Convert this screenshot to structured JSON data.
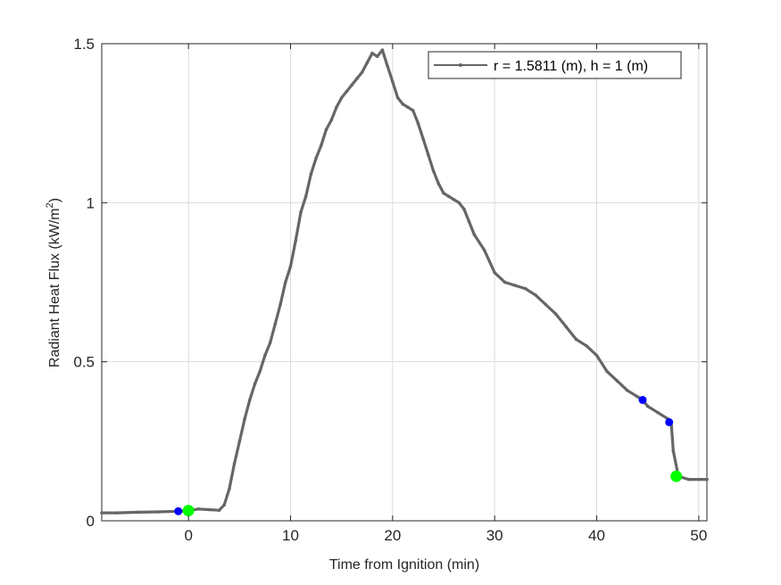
{
  "chart_data": {
    "type": "line",
    "xlabel": "Time from Ignition (min)",
    "ylabel_main": "Radiant Heat Flux (kW/m",
    "ylabel_sup": "2",
    "ylabel_end": ")",
    "xlim": [
      -8.5,
      50.8
    ],
    "ylim": [
      0,
      1.5
    ],
    "xticks": [
      0,
      10,
      20,
      30,
      40,
      50
    ],
    "xtick_labels": [
      "0",
      "10",
      "20",
      "30",
      "40",
      "50"
    ],
    "yticks": [
      0,
      0.5,
      1,
      1.5
    ],
    "ytick_labels": [
      "0",
      "0.5",
      "1",
      "1.5"
    ],
    "grid": true,
    "legend_position": "top-right",
    "series": [
      {
        "name": "r = 1.5811 (m), h = 1 (m)",
        "color": "#666666",
        "x": [
          -8.5,
          -7,
          -5,
          -3,
          -1,
          0,
          1,
          2,
          3,
          3.5,
          4,
          4.5,
          5,
          5.5,
          6,
          6.5,
          7,
          7.5,
          8,
          8.5,
          9,
          9.5,
          10,
          10.5,
          11,
          11.5,
          12,
          12.5,
          13,
          13.5,
          14,
          14.5,
          15,
          15.5,
          16,
          16.5,
          17,
          17.5,
          18,
          18.5,
          19,
          19.5,
          20,
          20.5,
          21,
          21.5,
          22,
          22.5,
          23,
          23.5,
          24,
          24.5,
          25,
          25.5,
          26,
          26.5,
          27,
          27.5,
          28,
          29,
          30,
          31,
          32,
          33,
          34,
          35,
          36,
          37,
          38,
          39,
          40,
          41,
          42,
          43,
          44,
          44.5,
          45,
          46,
          47,
          47.3,
          47.5,
          48,
          49,
          50,
          50.8
        ],
        "y": [
          0.025,
          0.025,
          0.027,
          0.028,
          0.03,
          0.032,
          0.037,
          0.035,
          0.033,
          0.05,
          0.1,
          0.18,
          0.25,
          0.32,
          0.38,
          0.43,
          0.47,
          0.52,
          0.56,
          0.62,
          0.68,
          0.75,
          0.8,
          0.88,
          0.97,
          1.02,
          1.09,
          1.14,
          1.18,
          1.23,
          1.26,
          1.3,
          1.33,
          1.35,
          1.37,
          1.39,
          1.41,
          1.44,
          1.47,
          1.46,
          1.48,
          1.43,
          1.38,
          1.33,
          1.31,
          1.3,
          1.29,
          1.25,
          1.2,
          1.15,
          1.1,
          1.06,
          1.03,
          1.02,
          1.01,
          1.0,
          0.98,
          0.94,
          0.9,
          0.85,
          0.78,
          0.75,
          0.74,
          0.73,
          0.71,
          0.68,
          0.65,
          0.61,
          0.57,
          0.55,
          0.52,
          0.47,
          0.44,
          0.41,
          0.39,
          0.38,
          0.36,
          0.34,
          0.32,
          0.31,
          0.22,
          0.14,
          0.13,
          0.13,
          0.13
        ]
      }
    ],
    "markers": [
      {
        "x": -1,
        "y": 0.03,
        "color": "#0000ff",
        "size": "small"
      },
      {
        "x": 0,
        "y": 0.032,
        "color": "#00ff00",
        "size": "large"
      },
      {
        "x": 44.5,
        "y": 0.38,
        "color": "#0000ff",
        "size": "small"
      },
      {
        "x": 47.1,
        "y": 0.31,
        "color": "#0000ff",
        "size": "small"
      },
      {
        "x": 47.8,
        "y": 0.14,
        "color": "#00ff00",
        "size": "large"
      }
    ]
  }
}
